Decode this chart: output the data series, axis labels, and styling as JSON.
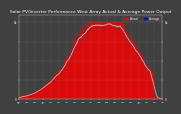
{
  "title": "Solar PV/Inverter Performance West Array Actual & Average Power Output",
  "title_fontsize": 3.2,
  "background_color": "#404040",
  "plot_bg_color": "#404040",
  "grid_color": "#888888",
  "area_color": "#ff0000",
  "avg_line_color": "#ffaaaa",
  "legend_actual_color": "#ff0000",
  "legend_avg_color": "#0000ff",
  "num_points": 500,
  "seed": 7,
  "ylim_max": 1.1
}
